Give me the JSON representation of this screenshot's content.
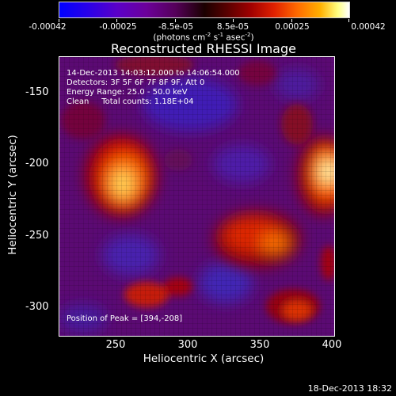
{
  "colorbar": {
    "tick_labels": [
      "-0.00042",
      "-0.00025",
      "-8.5e-05",
      "8.5e-05",
      "0.00025",
      "0.00042"
    ],
    "units_prefix": "(photons cm",
    "units_exp1": "-2",
    "units_mid1": " s",
    "units_exp2": "-1",
    "units_mid2": " asec",
    "units_exp3": "-2",
    "units_suffix": ")"
  },
  "title": "Reconstructed RHESSI Image",
  "info": {
    "time_range": "14-Dec-2013 14:03:12.000 to 14:06:54.000",
    "detectors": "Detectors: 3F 5F 6F 7F 8F 9F, Att 0",
    "energy_range": "Energy Range: 25.0 - 50.0 keV",
    "algorithm": "Clean     Total counts: 1.18E+04",
    "peak_position": "Position of Peak = [394,-208]"
  },
  "axes": {
    "x_label": "Heliocentric X (arcsec)",
    "y_label": "Heliocentric Y (arcsec)",
    "x_ticks": [
      "250",
      "300",
      "350",
      "400"
    ],
    "y_ticks": [
      "-150",
      "-200",
      "-250",
      "-300"
    ]
  },
  "footer_date": "18-Dec-2013 18:32",
  "colors": {
    "background": "#000000",
    "map_base": "#5b0a73",
    "text": "#ffffff"
  }
}
